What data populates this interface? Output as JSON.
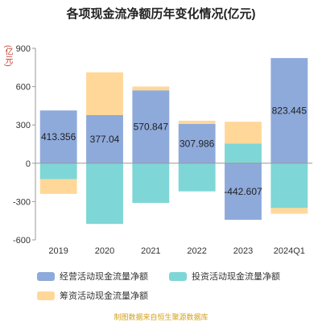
{
  "chart_data": {
    "type": "bar",
    "stacked": true,
    "title": "各项现金流净额历年变化情况(亿元)",
    "unit_label": "(亿元)",
    "categories": [
      "2019",
      "2020",
      "2021",
      "2022",
      "2023",
      "2024Q1"
    ],
    "ylim": [
      -600,
      900
    ],
    "yticks": [
      -600,
      -300,
      0,
      300,
      600,
      900
    ],
    "grid": false,
    "legend_position": "bottom",
    "series": [
      {
        "name": "经营活动现金流量净额",
        "color": "#8eaadb",
        "values": [
          413.356,
          377.04,
          570.847,
          307.986,
          -442.607,
          823.445
        ],
        "data_labels": [
          "413.356",
          "377.04",
          "570.847",
          "307.986",
          "-442.607",
          "823.445"
        ]
      },
      {
        "name": "投资活动现金流量净额",
        "color": "#7fd6d6",
        "values": [
          -125,
          -475,
          -310,
          -220,
          155,
          -350
        ]
      },
      {
        "name": "筹资活动现金流量净额",
        "color": "#ffd899",
        "values": [
          -115,
          335,
          30,
          25,
          170,
          -45
        ]
      }
    ],
    "source": "制图数据来自恒生聚源数据库"
  }
}
